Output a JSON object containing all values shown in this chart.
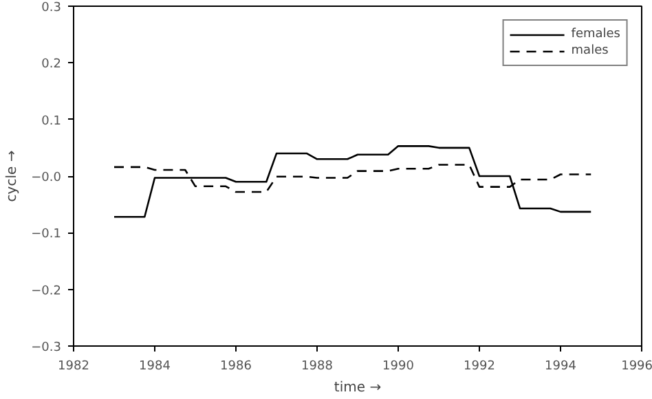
{
  "chart_data": {
    "type": "line",
    "xlabel": "time →",
    "ylabel": "cycle →",
    "x": [
      1983,
      1983.75,
      1984,
      1984.75,
      1985,
      1985.75,
      1986,
      1986.75,
      1987,
      1987.75,
      1988,
      1988.75,
      1989,
      1989.75,
      1990,
      1990.75,
      1991,
      1991.75,
      1992,
      1992.75,
      1993,
      1993.75,
      1994,
      1994.75
    ],
    "series": [
      {
        "name": "females",
        "color": "#000000",
        "line_style": "solid",
        "values": [
          -0.072,
          -0.072,
          -0.003,
          -0.003,
          -0.003,
          -0.003,
          -0.01,
          -0.01,
          0.04,
          0.04,
          0.03,
          0.03,
          0.038,
          0.038,
          0.053,
          0.053,
          0.05,
          0.05,
          0.0,
          0.0,
          -0.057,
          -0.057,
          -0.063,
          -0.063
        ]
      },
      {
        "name": "males",
        "color": "#000000",
        "line_style": "dashed",
        "values": [
          0.016,
          0.016,
          0.011,
          0.011,
          -0.018,
          -0.018,
          -0.028,
          -0.028,
          -0.001,
          -0.001,
          -0.003,
          -0.003,
          0.009,
          0.009,
          0.013,
          0.013,
          0.02,
          0.02,
          -0.019,
          -0.019,
          -0.006,
          -0.006,
          0.003,
          0.003
        ]
      }
    ],
    "xlim": [
      1982,
      1996
    ],
    "xticks": [
      1982,
      1984,
      1986,
      1988,
      1990,
      1992,
      1994,
      1996
    ],
    "ylim": [
      -0.3,
      0.3
    ],
    "yticks": [
      {
        "value": -0.3,
        "label": "−0.3"
      },
      {
        "value": -0.2,
        "label": "−0.2"
      },
      {
        "value": -0.1,
        "label": "−0.1"
      },
      {
        "value": 0,
        "label": "−0.0"
      },
      0.1,
      0.2,
      0.3
    ],
    "grid": false,
    "legend": "top right",
    "marker": "none"
  }
}
